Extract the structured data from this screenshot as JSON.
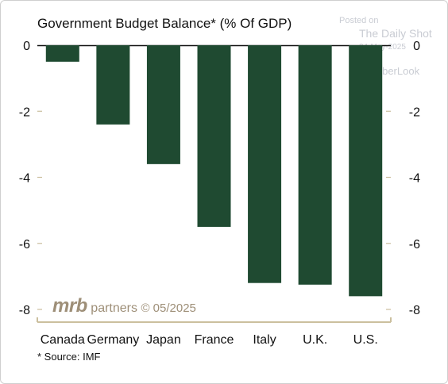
{
  "watermark": {
    "posted": "Posted on",
    "site": "The Daily Shot",
    "date": "24-May-2025",
    "handle": "@SoberLook"
  },
  "logo": {
    "mark": "mrb",
    "text": "partners",
    "date": "© 05/2025"
  },
  "source": "* Source: IMF",
  "colors": {
    "bar": "#1f4a31",
    "axis": "#cbbf9e",
    "text": "#111111"
  },
  "chart_data": {
    "type": "bar",
    "title": "Government Budget Balance* (% Of GDP)",
    "xlabel": "",
    "ylabel": "",
    "categories": [
      "Canada",
      "Germany",
      "Japan",
      "France",
      "Italy",
      "U.K.",
      "U.S."
    ],
    "values": [
      -0.5,
      -2.4,
      -3.6,
      -5.5,
      -7.2,
      -7.25,
      -7.6
    ],
    "ylim": [
      -8,
      0
    ],
    "yticks": [
      0,
      -2,
      -4,
      -6,
      -8
    ],
    "ytick_labels": [
      "0",
      "-2",
      "-4",
      "-6",
      "-8"
    ],
    "grid": false,
    "legend": "none"
  }
}
